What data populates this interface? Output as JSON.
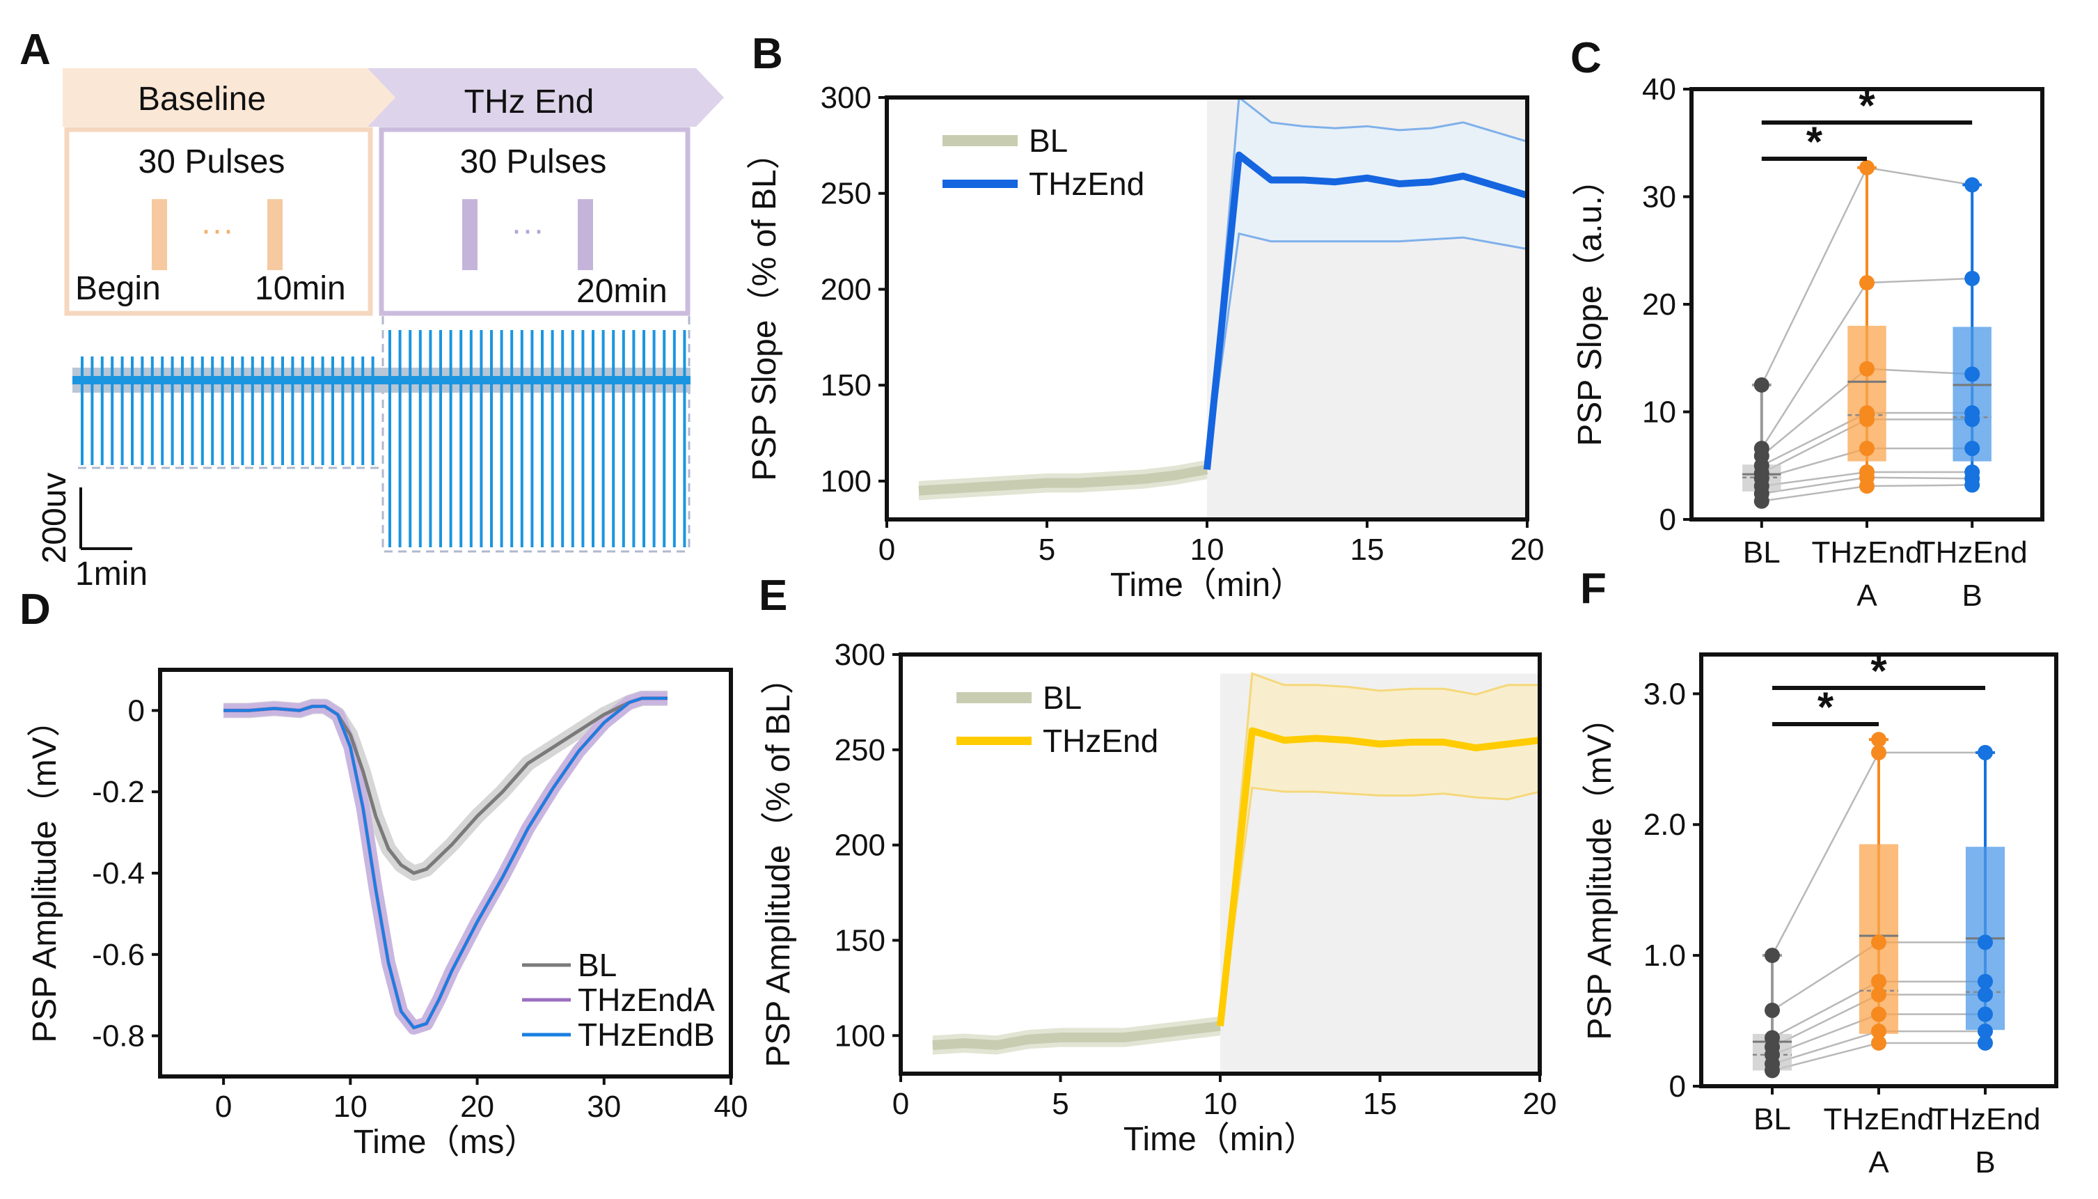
{
  "colors": {
    "baseline_fill": "#fbe7d6",
    "thz_fill": "#ddd3ea",
    "baseline_border": "#f5d7bf",
    "thz_border": "#cbbcde",
    "pulse_orange": "#f6c9a0",
    "pulse_purple": "#c4b4da",
    "trace": "#1b95e0",
    "bl_line": "#c8cdb2",
    "thz_blue": "#1565e0",
    "thz_blue_band": "#e6f1fb",
    "thz_yellow": "#ffcc00",
    "thz_yellow_band": "#fbeec3",
    "grey_region": "#f0f0f0",
    "orange_box": "#f9a550",
    "orange_dot": "#f68a1f",
    "blue_box": "#4d9ae8",
    "blue_dot": "#1673e0",
    "grey_box": "#c8c8c8",
    "grey_dot": "#4a4a4a",
    "trace_bl": "#7a7a7a",
    "trace_a": "#9b6fc0",
    "trace_b": "#1a7fe0"
  },
  "panel_a": {
    "label": "A",
    "baseline_label": "Baseline",
    "thz_label": "THz End",
    "pulses_left": "30 Pulses",
    "pulses_right": "30 Pulses",
    "dots": "···",
    "begin": "Begin",
    "t10": "10min",
    "t20": "20min",
    "scale_v": "200uv",
    "scale_t": "1min"
  },
  "panel_labels": {
    "b": "B",
    "c": "C",
    "d": "D",
    "e": "E",
    "f": "F"
  },
  "chart_data": [
    {
      "id": "B",
      "type": "line",
      "xlabel": "Time（min）",
      "ylabel": "PSP Slope（% of BL）",
      "xlim": [
        0,
        20
      ],
      "ylim": [
        80,
        300
      ],
      "xticks": [
        0,
        5,
        10,
        15,
        20
      ],
      "yticks": [
        100,
        150,
        200,
        250,
        300
      ],
      "legend": "top-left",
      "series": [
        {
          "name": "BL",
          "color": "#c8cdb2",
          "x": [
            1,
            2,
            3,
            4,
            5,
            6,
            7,
            8,
            9,
            10
          ],
          "values": [
            95,
            96,
            97,
            98,
            99,
            99,
            100,
            101,
            103,
            106
          ],
          "lower": [
            90,
            91,
            92,
            93,
            94,
            94,
            95,
            96,
            98,
            101
          ],
          "upper": [
            100,
            101,
            102,
            103,
            104,
            104,
            105,
            106,
            108,
            111
          ]
        },
        {
          "name": "THzEnd",
          "color": "#1565e0",
          "x": [
            10,
            11,
            12,
            13,
            14,
            15,
            16,
            17,
            18,
            19,
            20
          ],
          "values": [
            106,
            270,
            257,
            257,
            256,
            258,
            255,
            256,
            259,
            254,
            249
          ],
          "lower": [
            106,
            229,
            225,
            225,
            225,
            225,
            225,
            226,
            227,
            224,
            221
          ],
          "upper": [
            106,
            300,
            287,
            285,
            284,
            285,
            283,
            284,
            287,
            282,
            277
          ]
        }
      ],
      "shaded_region_x": [
        10,
        20
      ]
    },
    {
      "id": "C",
      "type": "box",
      "ylabel": "PSP Slope（a.u.）",
      "ylim": [
        0,
        40
      ],
      "yticks": [
        0,
        10,
        20,
        30,
        40
      ],
      "categories": [
        "BL",
        "THzEnd\nA",
        "THzEnd\nB"
      ],
      "category_line1": [
        "BL",
        "THzEnd",
        "THzEnd"
      ],
      "category_line2": [
        "",
        "A",
        "B"
      ],
      "boxes": [
        {
          "q1": 2.6,
          "median": 4.2,
          "q3": 5.1,
          "mean": 3.9,
          "whisker_low": 1.6,
          "whisker_high": 12.5,
          "points": [
            1.7,
            2.4,
            3.1,
            3.8,
            4.3,
            5.0,
            5.9,
            6.6,
            12.5
          ]
        },
        {
          "q1": 5.4,
          "median": 12.8,
          "q3": 18.0,
          "mean": 9.7,
          "whisker_low": 3.0,
          "whisker_high": 32.7,
          "points": [
            3.1,
            3.9,
            4.4,
            6.6,
            9.3,
            9.9,
            14.0,
            22.0,
            32.7
          ]
        },
        {
          "q1": 5.4,
          "median": 12.5,
          "q3": 17.9,
          "mean": 9.5,
          "whisker_low": 3.2,
          "whisker_high": 31.1,
          "points": [
            3.2,
            3.8,
            4.4,
            6.6,
            9.3,
            9.9,
            13.5,
            22.4,
            31.1
          ]
        }
      ],
      "significance": [
        {
          "from": 0,
          "to": 1,
          "label": "*"
        },
        {
          "from": 0,
          "to": 2,
          "label": "*"
        }
      ]
    },
    {
      "id": "D",
      "type": "line",
      "xlabel": "Time（ms）",
      "ylabel": "PSP Amplitude（mV）",
      "xlim": [
        -5,
        40
      ],
      "ylim": [
        -0.9,
        0.1
      ],
      "xticks": [
        0,
        10,
        20,
        30,
        40
      ],
      "yticks": [
        0,
        -0.2,
        -0.4,
        -0.6,
        -0.8
      ],
      "ytick_labels": [
        "0",
        "-0.2",
        "-0.4",
        "-0.6",
        "-0.8"
      ],
      "legend": "bottom-right",
      "series": [
        {
          "name": "BL",
          "color": "#7a7a7a",
          "x": [
            0,
            2,
            4,
            6,
            7,
            8,
            9,
            10,
            11,
            12,
            13,
            14,
            15,
            16,
            17,
            18,
            20,
            22,
            24,
            26,
            28,
            30,
            32,
            33,
            35
          ],
          "values": [
            0,
            0,
            0.005,
            0,
            0.01,
            0.01,
            -0.01,
            -0.06,
            -0.15,
            -0.26,
            -0.34,
            -0.38,
            -0.4,
            -0.39,
            -0.36,
            -0.33,
            -0.26,
            -0.2,
            -0.13,
            -0.09,
            -0.05,
            -0.01,
            0.02,
            0.03,
            0.03
          ]
        },
        {
          "name": "THzEndA",
          "color": "#9b6fc0",
          "x": [
            0,
            2,
            4,
            6,
            7,
            8,
            9,
            10,
            11,
            12,
            13,
            14,
            15,
            16,
            17,
            18,
            20,
            22,
            24,
            26,
            28,
            30,
            32,
            33,
            35
          ],
          "values": [
            0,
            0,
            0.005,
            0,
            0.01,
            0.01,
            -0.01,
            -0.09,
            -0.24,
            -0.44,
            -0.62,
            -0.74,
            -0.78,
            -0.77,
            -0.71,
            -0.64,
            -0.52,
            -0.41,
            -0.29,
            -0.19,
            -0.1,
            -0.03,
            0.02,
            0.03,
            0.03
          ]
        },
        {
          "name": "THzEndB",
          "color": "#1a7fe0",
          "x": [
            0,
            2,
            4,
            6,
            7,
            8,
            9,
            10,
            11,
            12,
            13,
            14,
            15,
            16,
            17,
            18,
            20,
            22,
            24,
            26,
            28,
            30,
            32,
            33,
            35
          ],
          "values": [
            0,
            0,
            0.005,
            0,
            0.01,
            0.01,
            -0.01,
            -0.09,
            -0.24,
            -0.44,
            -0.62,
            -0.74,
            -0.78,
            -0.77,
            -0.71,
            -0.64,
            -0.52,
            -0.41,
            -0.29,
            -0.19,
            -0.1,
            -0.03,
            0.02,
            0.03,
            0.03
          ]
        }
      ]
    },
    {
      "id": "E",
      "type": "line",
      "xlabel": "Time（min）",
      "ylabel": "PSP Amplitude（% of BL）",
      "xlim": [
        0,
        20
      ],
      "ylim": [
        80,
        300
      ],
      "xticks": [
        0,
        5,
        10,
        15,
        20
      ],
      "yticks": [
        100,
        150,
        200,
        250,
        300
      ],
      "legend": "top-left",
      "series": [
        {
          "name": "BL",
          "color": "#c8cdb2",
          "x": [
            1,
            2,
            3,
            4,
            5,
            6,
            7,
            8,
            9,
            10
          ],
          "values": [
            95,
            96,
            95,
            98,
            99,
            99,
            99,
            101,
            103,
            105
          ],
          "lower": [
            90,
            91,
            90,
            93,
            94,
            94,
            94,
            96,
            98,
            100
          ],
          "upper": [
            100,
            101,
            100,
            103,
            104,
            104,
            104,
            106,
            108,
            110
          ]
        },
        {
          "name": "THzEnd",
          "color": "#ffcc00",
          "x": [
            10,
            11,
            12,
            13,
            14,
            15,
            16,
            17,
            18,
            19,
            20
          ],
          "values": [
            105,
            260,
            255,
            256,
            255,
            253,
            254,
            254,
            251,
            253,
            255
          ],
          "lower": [
            105,
            230,
            228,
            228,
            227,
            226,
            226,
            227,
            225,
            224,
            228
          ],
          "upper": [
            105,
            290,
            284,
            284,
            283,
            281,
            282,
            282,
            279,
            284,
            284
          ]
        }
      ],
      "shaded_region_x": [
        10,
        20
      ]
    },
    {
      "id": "F",
      "type": "box",
      "ylabel": "PSP Amplitude（mV）",
      "ylim": [
        0,
        3.3
      ],
      "yticks": [
        0,
        1.0,
        2.0,
        3.0
      ],
      "ytick_labels": [
        "0",
        "1.0",
        "2.0",
        "3.0"
      ],
      "categories": [
        "BL",
        "THzEnd\nA",
        "THzEnd\nB"
      ],
      "category_line1": [
        "BL",
        "THzEnd",
        "THzEnd"
      ],
      "category_line2": [
        "",
        "A",
        "B"
      ],
      "boxes": [
        {
          "q1": 0.12,
          "median": 0.34,
          "q3": 0.4,
          "mean": 0.24,
          "whisker_low": 0.1,
          "whisker_high": 1.0,
          "points": [
            0.12,
            0.17,
            0.24,
            0.3,
            0.37,
            0.58,
            1.0
          ]
        },
        {
          "q1": 0.4,
          "median": 1.15,
          "q3": 1.85,
          "mean": 0.73,
          "whisker_low": 0.3,
          "whisker_high": 2.65,
          "points": [
            0.33,
            0.42,
            0.55,
            0.7,
            0.8,
            1.1,
            2.55,
            2.65
          ]
        },
        {
          "q1": 0.43,
          "median": 1.13,
          "q3": 1.83,
          "mean": 0.72,
          "whisker_low": 0.32,
          "whisker_high": 2.55,
          "points": [
            0.33,
            0.42,
            0.55,
            0.7,
            0.8,
            1.1,
            2.55
          ]
        }
      ],
      "significance": [
        {
          "from": 0,
          "to": 1,
          "label": "*"
        },
        {
          "from": 0,
          "to": 2,
          "label": "*"
        }
      ]
    }
  ]
}
